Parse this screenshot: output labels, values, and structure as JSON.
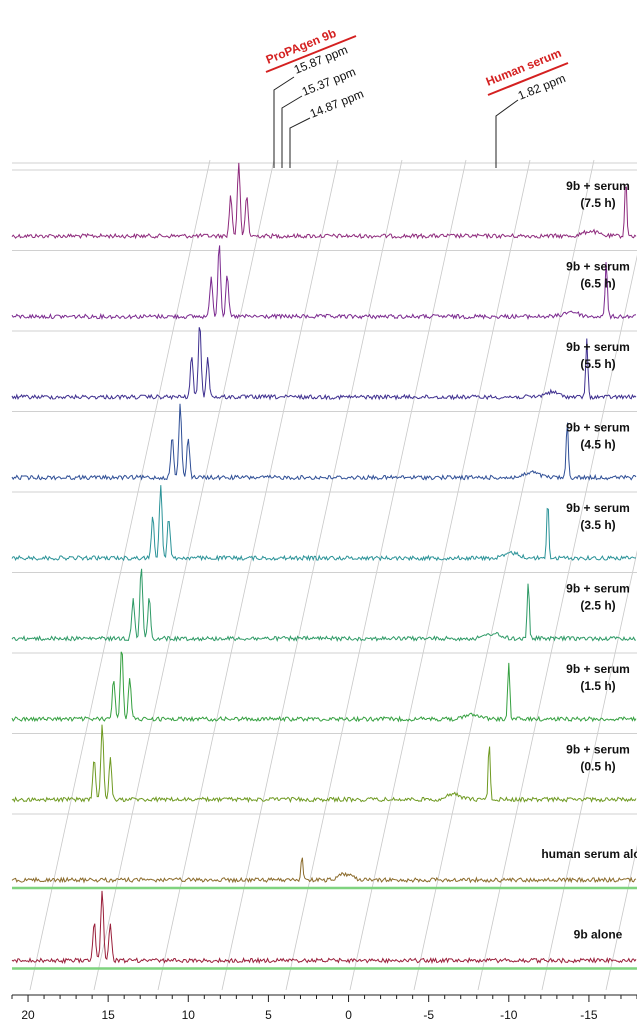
{
  "chart_data": {
    "type": "line",
    "stacked": true,
    "x_axis": {
      "reversed": true,
      "xlim": [
        21,
        -18
      ],
      "ticks": [
        20,
        15,
        10,
        5,
        0,
        -5,
        -10,
        -15
      ],
      "tick_labels": [
        "20",
        "15",
        "10",
        "5",
        "0",
        "-5",
        "-10",
        "-15"
      ]
    },
    "annotations": {
      "group_labels": [
        "ProPAgen 9b",
        "Human serum"
      ],
      "peak_labels": [
        "15.87 ppm",
        "15.37 ppm",
        "14.87 ppm",
        "1.82 ppm"
      ],
      "peak_positions": [
        15.87,
        15.37,
        14.87,
        1.82
      ]
    },
    "series": [
      {
        "name_lines": [
          "9b + serum",
          "(7.5 h)"
        ],
        "color": "#8e2a7c",
        "triplet_center": 15.37,
        "triplet_height": 1.0,
        "serum_peak": 1.82,
        "serum_height": 0.85
      },
      {
        "name_lines": [
          "9b + serum",
          "(6.5 h)"
        ],
        "color": "#7b2a8f",
        "triplet_center": 15.37,
        "triplet_height": 1.0,
        "serum_peak": 1.82,
        "serum_height": 0.85
      },
      {
        "name_lines": [
          "9b + serum",
          "(5.5 h)"
        ],
        "color": "#3e2f8f",
        "triplet_center": 15.37,
        "triplet_height": 1.0,
        "serum_peak": 1.82,
        "serum_height": 0.85
      },
      {
        "name_lines": [
          "9b + serum",
          "(4.5 h)"
        ],
        "color": "#2f4f96",
        "triplet_center": 15.37,
        "triplet_height": 1.0,
        "serum_peak": 1.82,
        "serum_height": 0.85
      },
      {
        "name_lines": [
          "9b + serum",
          "(3.5 h)"
        ],
        "color": "#2b9398",
        "triplet_center": 15.37,
        "triplet_height": 1.0,
        "serum_peak": 1.82,
        "serum_height": 0.85
      },
      {
        "name_lines": [
          "9b + serum",
          "(2.5 h)"
        ],
        "color": "#2e9a66",
        "triplet_center": 15.37,
        "triplet_height": 1.0,
        "serum_peak": 1.82,
        "serum_height": 0.85
      },
      {
        "name_lines": [
          "9b + serum",
          "(1.5 h)"
        ],
        "color": "#35a040",
        "triplet_center": 15.37,
        "triplet_height": 1.0,
        "serum_peak": 1.82,
        "serum_height": 0.85
      },
      {
        "name_lines": [
          "9b + serum",
          "(0.5 h)"
        ],
        "color": "#6f9a22",
        "triplet_center": 15.37,
        "triplet_height": 1.0,
        "serum_peak": 1.82,
        "serum_height": 0.85
      },
      {
        "name_lines": [
          "human serum alone"
        ],
        "color": "#8a6a2a",
        "triplet_center": null,
        "triplet_height": 0,
        "serum_peak": 1.82,
        "serum_height": 0.35
      },
      {
        "name_lines": [
          "9b alone"
        ],
        "color": "#9a1f3a",
        "triplet_center": 15.37,
        "triplet_height": 0.95,
        "serum_peak": null,
        "serum_height": 0
      }
    ]
  }
}
